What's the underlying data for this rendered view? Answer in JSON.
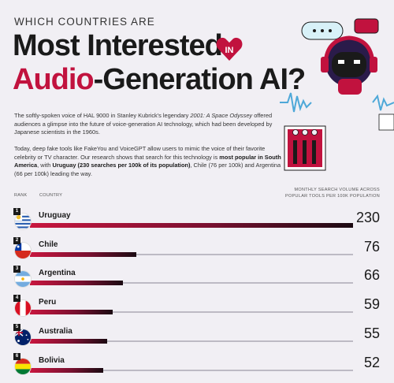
{
  "header": {
    "kicker": "WHICH COUNTRIES ARE",
    "title_line1": "Most Interested",
    "badge": "IN",
    "title_accent": "Audio",
    "title_rest": "-Generation AI?"
  },
  "intro": {
    "p1_a": "The softly-spoken voice of HAL 9000 in Stanley Kubrick's legendary ",
    "p1_film": "2001: A Space Odyssey",
    "p1_b": " offered audiences a glimpse into the future of voice-generation AI technology, which had been developed by Japanese scientists in the 1960s.",
    "p2_a": "Today, deep fake tools like FakeYou and VoiceGPT allow users to mimic the voice of their favorite celebrity or TV character. Our research shows that search for this technology is ",
    "p2_b1": "most popular in South America",
    "p2_c": ", with ",
    "p2_b2": "Uruguay (230 searches per 100k of its population)",
    "p2_d": ", Chile (76 per 100k) and Argentina (66 per 100k) leading the way."
  },
  "table_header": {
    "rank": "RANK",
    "country": "COUNTRY",
    "metric": "MONTHLY SEARCH VOLUME ACROSS POPULAR TOOLS PER 100K POPULATION"
  },
  "colors": {
    "accent": "#c1123e",
    "dark": "#1a1a1a",
    "track": "#bdbac4"
  },
  "chart_data": {
    "type": "bar",
    "orientation": "horizontal",
    "categories": [
      "Uruguay",
      "Chile",
      "Argentina",
      "Peru",
      "Australia",
      "Bolivia"
    ],
    "ranks": [
      "1",
      "2",
      "3",
      "4",
      "5",
      "6"
    ],
    "values": [
      230,
      76,
      66,
      59,
      55,
      52
    ],
    "xlim": [
      0,
      230
    ]
  }
}
